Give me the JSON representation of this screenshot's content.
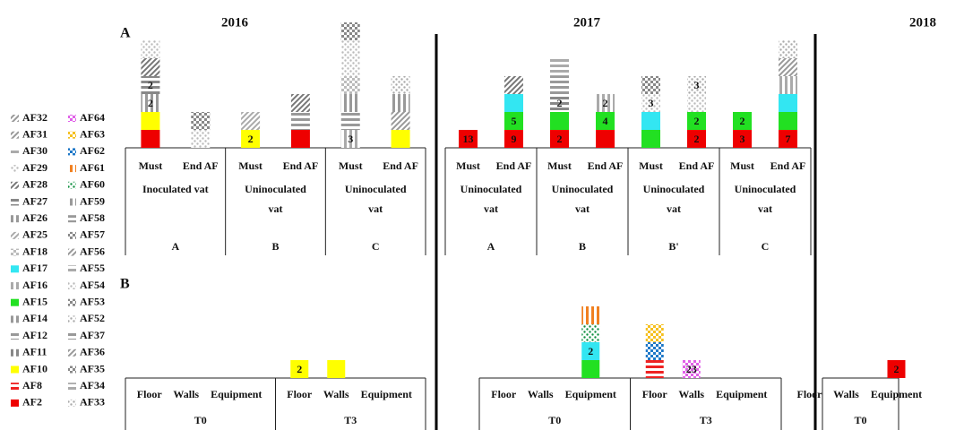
{
  "years": [
    "2016",
    "2017",
    "2018"
  ],
  "legend": [
    {
      "name": "AF32",
      "color": "#999",
      "pattern": "dstripe"
    },
    {
      "name": "AF31",
      "color": "#999",
      "pattern": "dstripe"
    },
    {
      "name": "AF30",
      "color": "#aaa",
      "pattern": "hstripe"
    },
    {
      "name": "AF29",
      "color": "#bbb",
      "pattern": "dots"
    },
    {
      "name": "AF28",
      "color": "#777",
      "pattern": "dstripe"
    },
    {
      "name": "AF27",
      "color": "#888",
      "pattern": "hstripe"
    },
    {
      "name": "AF26",
      "color": "#999",
      "pattern": "vstripe"
    },
    {
      "name": "AF25",
      "color": "#aaa",
      "pattern": "dstripe"
    },
    {
      "name": "AF18",
      "color": "#bbb",
      "pattern": "check"
    },
    {
      "name": "AF17",
      "color": "#33e6f2",
      "pattern": "solid"
    },
    {
      "name": "AF16",
      "color": "#aaa",
      "pattern": "vstripe"
    },
    {
      "name": "AF15",
      "color": "#22e022",
      "pattern": "solid"
    },
    {
      "name": "AF14",
      "color": "#999",
      "pattern": "vstripe"
    },
    {
      "name": "AF12",
      "color": "#999",
      "pattern": "hstripe"
    },
    {
      "name": "AF11",
      "color": "#888",
      "pattern": "vstripe"
    },
    {
      "name": "AF10",
      "color": "#ffff00",
      "pattern": "solid"
    },
    {
      "name": "AF8",
      "color": "#ee2222",
      "pattern": "hstripe"
    },
    {
      "name": "AF2",
      "color": "#ee0000",
      "pattern": "solid"
    },
    {
      "name": "AF64",
      "color": "#e060e8",
      "pattern": "check"
    },
    {
      "name": "AF63",
      "color": "#f5c020",
      "pattern": "check"
    },
    {
      "name": "AF62",
      "color": "#1e78c8",
      "pattern": "check"
    },
    {
      "name": "AF61",
      "color": "#f08020",
      "pattern": "vstripe"
    },
    {
      "name": "AF60",
      "color": "#109040",
      "pattern": "dots"
    },
    {
      "name": "AF59",
      "color": "#999",
      "pattern": "vstripe"
    },
    {
      "name": "AF58",
      "color": "#999",
      "pattern": "hstripe"
    },
    {
      "name": "AF57",
      "color": "#888",
      "pattern": "check"
    },
    {
      "name": "AF56",
      "color": "#999",
      "pattern": "dstripe"
    },
    {
      "name": "AF55",
      "color": "#aaa",
      "pattern": "hstripe"
    },
    {
      "name": "AF54",
      "color": "#bbb",
      "pattern": "dots"
    },
    {
      "name": "AF53",
      "color": "#888",
      "pattern": "check"
    },
    {
      "name": "AF52",
      "color": "#aaa",
      "pattern": "dots"
    },
    {
      "name": "AF37",
      "color": "#999",
      "pattern": "hstripe"
    },
    {
      "name": "AF36",
      "color": "#999",
      "pattern": "dstripe"
    },
    {
      "name": "AF35",
      "color": "#888",
      "pattern": "check"
    },
    {
      "name": "AF34",
      "color": "#aaa",
      "pattern": "hstripe"
    },
    {
      "name": "AF33",
      "color": "#aaa",
      "pattern": "dots"
    }
  ],
  "panel_a": {
    "label": "A",
    "years": [
      {
        "groups": [
          {
            "name": "A",
            "vat": [
              "Inoculated vat"
            ],
            "bars": [
              {
                "name": "Must",
                "segments": [
                  {
                    "af": "AF2"
                  },
                  {
                    "af": "AF10"
                  },
                  {
                    "af": "AF26",
                    "label": 2
                  },
                  {
                    "af": "AF27",
                    "label": 2
                  },
                  {
                    "af": "AF28"
                  },
                  {
                    "af": "AF29"
                  }
                ]
              },
              {
                "name": "End AF",
                "segments": [
                  {
                    "af": "AF54"
                  },
                  {
                    "af": "AF53"
                  }
                ]
              }
            ]
          },
          {
            "name": "B",
            "vat": [
              "Uninoculated",
              "vat"
            ],
            "bars": [
              {
                "name": "Must",
                "segments": [
                  {
                    "af": "AF10",
                    "label": 2
                  },
                  {
                    "af": "AF25"
                  }
                ]
              },
              {
                "name": "End AF",
                "segments": [
                  {
                    "af": "AF2"
                  },
                  {
                    "af": "AF58"
                  },
                  {
                    "af": "AF28"
                  }
                ]
              }
            ]
          },
          {
            "name": "C",
            "vat": [
              "Uninoculated",
              "vat"
            ],
            "bars": [
              {
                "name": "Must",
                "segments": [
                  {
                    "af": "AF16",
                    "label": 3
                  },
                  {
                    "af": "AF12"
                  },
                  {
                    "af": "AF14"
                  },
                  {
                    "af": "AF18"
                  },
                  {
                    "af": "AF29"
                  },
                  {
                    "af": "AF54"
                  },
                  {
                    "af": "AF53"
                  }
                ]
              },
              {
                "name": "End AF",
                "segments": [
                  {
                    "af": "AF10"
                  },
                  {
                    "af": "AF36"
                  },
                  {
                    "af": "AF26"
                  },
                  {
                    "af": "AF52"
                  }
                ]
              }
            ]
          }
        ]
      },
      {
        "groups": [
          {
            "name": "A",
            "vat": [
              "Uninoculated",
              "vat"
            ],
            "bars": [
              {
                "name": "Must",
                "segments": [
                  {
                    "af": "AF2",
                    "label": 13
                  }
                ]
              },
              {
                "name": "End AF",
                "segments": [
                  {
                    "af": "AF2",
                    "label": 9
                  },
                  {
                    "af": "AF15",
                    "label": 5
                  },
                  {
                    "af": "AF17"
                  },
                  {
                    "af": "AF28"
                  }
                ]
              }
            ]
          },
          {
            "name": "B",
            "vat": [
              "Uninoculated",
              "vat"
            ],
            "bars": [
              {
                "name": "Must",
                "segments": [
                  {
                    "af": "AF2",
                    "label": 2
                  },
                  {
                    "af": "AF15"
                  },
                  {
                    "af": "AF27",
                    "label": 2
                  },
                  {
                    "af": "AF12"
                  },
                  {
                    "af": "AF30"
                  }
                ]
              },
              {
                "name": "End AF",
                "segments": [
                  {
                    "af": "AF2"
                  },
                  {
                    "af": "AF15",
                    "label": 4
                  },
                  {
                    "af": "AF16",
                    "label": 2
                  }
                ]
              }
            ]
          },
          {
            "name": "B'",
            "vat": [
              "Uninoculated",
              "vat"
            ],
            "bars": [
              {
                "name": "Must",
                "segments": [
                  {
                    "af": "AF15"
                  },
                  {
                    "af": "AF17"
                  },
                  {
                    "af": "AF29",
                    "label": 3
                  },
                  {
                    "af": "AF53"
                  }
                ]
              },
              {
                "name": "End AF",
                "segments": [
                  {
                    "af": "AF2",
                    "label": 2
                  },
                  {
                    "af": "AF15",
                    "label": 2
                  },
                  {
                    "af": "AF29"
                  },
                  {
                    "af": "AF33",
                    "label": 3
                  }
                ]
              }
            ]
          },
          {
            "name": "C",
            "vat": [
              "Uninoculated",
              "vat"
            ],
            "bars": [
              {
                "name": "Must",
                "segments": [
                  {
                    "af": "AF2",
                    "label": 3
                  },
                  {
                    "af": "AF15",
                    "label": 2
                  }
                ]
              },
              {
                "name": "End AF",
                "segments": [
                  {
                    "af": "AF2",
                    "label": 7
                  },
                  {
                    "af": "AF15"
                  },
                  {
                    "af": "AF17"
                  },
                  {
                    "af": "AF16"
                  },
                  {
                    "af": "AF56"
                  },
                  {
                    "af": "AF52"
                  }
                ]
              }
            ]
          }
        ]
      },
      {
        "groups": []
      }
    ]
  },
  "panel_b": {
    "label": "B",
    "years": [
      {
        "groups": [
          {
            "name": "T0",
            "bars": [
              {
                "name": "Floor",
                "segments": []
              },
              {
                "name": "Walls",
                "segments": []
              },
              {
                "name": "Equipment",
                "segments": []
              }
            ]
          },
          {
            "name": "T3",
            "bars": [
              {
                "name": "Floor",
                "segments": [
                  {
                    "af": "AF10",
                    "label": 2
                  }
                ]
              },
              {
                "name": "Walls",
                "segments": [
                  {
                    "af": "AF10"
                  }
                ]
              },
              {
                "name": "Equipment",
                "segments": []
              }
            ]
          }
        ]
      },
      {
        "groups": [
          {
            "name": "T0",
            "bars": [
              {
                "name": "Floor",
                "segments": []
              },
              {
                "name": "Walls",
                "segments": []
              },
              {
                "name": "Equipment",
                "segments": [
                  {
                    "af": "AF15"
                  },
                  {
                    "af": "AF17",
                    "label": 2
                  },
                  {
                    "af": "AF60"
                  },
                  {
                    "af": "AF61"
                  }
                ]
              }
            ]
          },
          {
            "name": "T3",
            "bars": [
              {
                "name": "Floor",
                "segments": [
                  {
                    "af": "AF8"
                  },
                  {
                    "af": "AF62"
                  },
                  {
                    "af": "AF63"
                  }
                ]
              },
              {
                "name": "Walls",
                "segments": [
                  {
                    "af": "AF64",
                    "label": 23
                  }
                ]
              },
              {
                "name": "Equipment",
                "segments": []
              }
            ]
          }
        ]
      },
      {
        "groups": [
          {
            "name": "T0",
            "bars": [
              {
                "name": "Floor",
                "segments": []
              },
              {
                "name": "Walls",
                "segments": []
              },
              {
                "name": "Equipment",
                "segments": [
                  {
                    "af": "AF2",
                    "label": 2
                  }
                ]
              }
            ]
          }
        ]
      }
    ]
  }
}
